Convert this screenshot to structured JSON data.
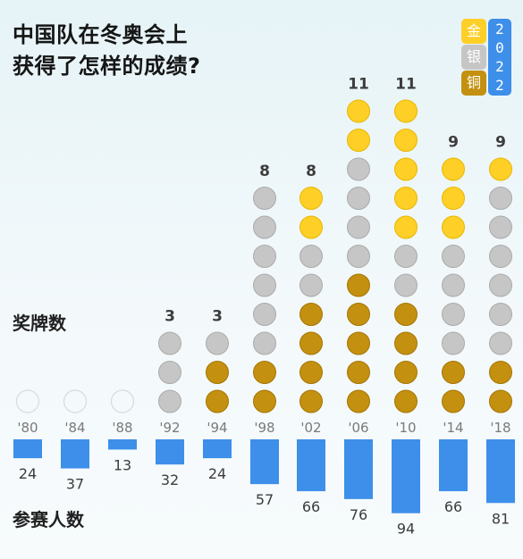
{
  "title_lines": [
    "中国队在冬奥会上",
    "获得了怎样的成绩?"
  ],
  "legend": {
    "gold": {
      "label": "金",
      "color": "#fecf26"
    },
    "silver": {
      "label": "银",
      "color": "#c6c6c6"
    },
    "bronze": {
      "label": "铜",
      "color": "#c4900f"
    },
    "year_digits": [
      "2",
      "0",
      "2",
      "2"
    ],
    "year_badge_color": "#3d8fea"
  },
  "medals_label": "奖牌数",
  "athletes_label": "参赛人数",
  "chart_data": {
    "type": "bar",
    "categories": [
      "'80",
      "'84",
      "'88",
      "'92",
      "'94",
      "'98",
      "'02",
      "'06",
      "'10",
      "'14",
      "'18"
    ],
    "series": [
      {
        "name": "金",
        "values": [
          0,
          0,
          0,
          0,
          0,
          0,
          2,
          2,
          5,
          3,
          1
        ]
      },
      {
        "name": "银",
        "values": [
          0,
          0,
          0,
          3,
          1,
          6,
          2,
          4,
          2,
          4,
          6
        ]
      },
      {
        "name": "铜",
        "values": [
          0,
          0,
          0,
          0,
          2,
          2,
          4,
          5,
          4,
          2,
          2
        ]
      }
    ],
    "medal_totals": [
      "",
      "",
      "",
      "3",
      "3",
      "8",
      "8",
      "11",
      "11",
      "9",
      "9"
    ],
    "athletes": [
      24,
      37,
      13,
      32,
      24,
      57,
      66,
      76,
      94,
      66,
      81
    ],
    "athlete_bar_color": "#3d8fea"
  }
}
